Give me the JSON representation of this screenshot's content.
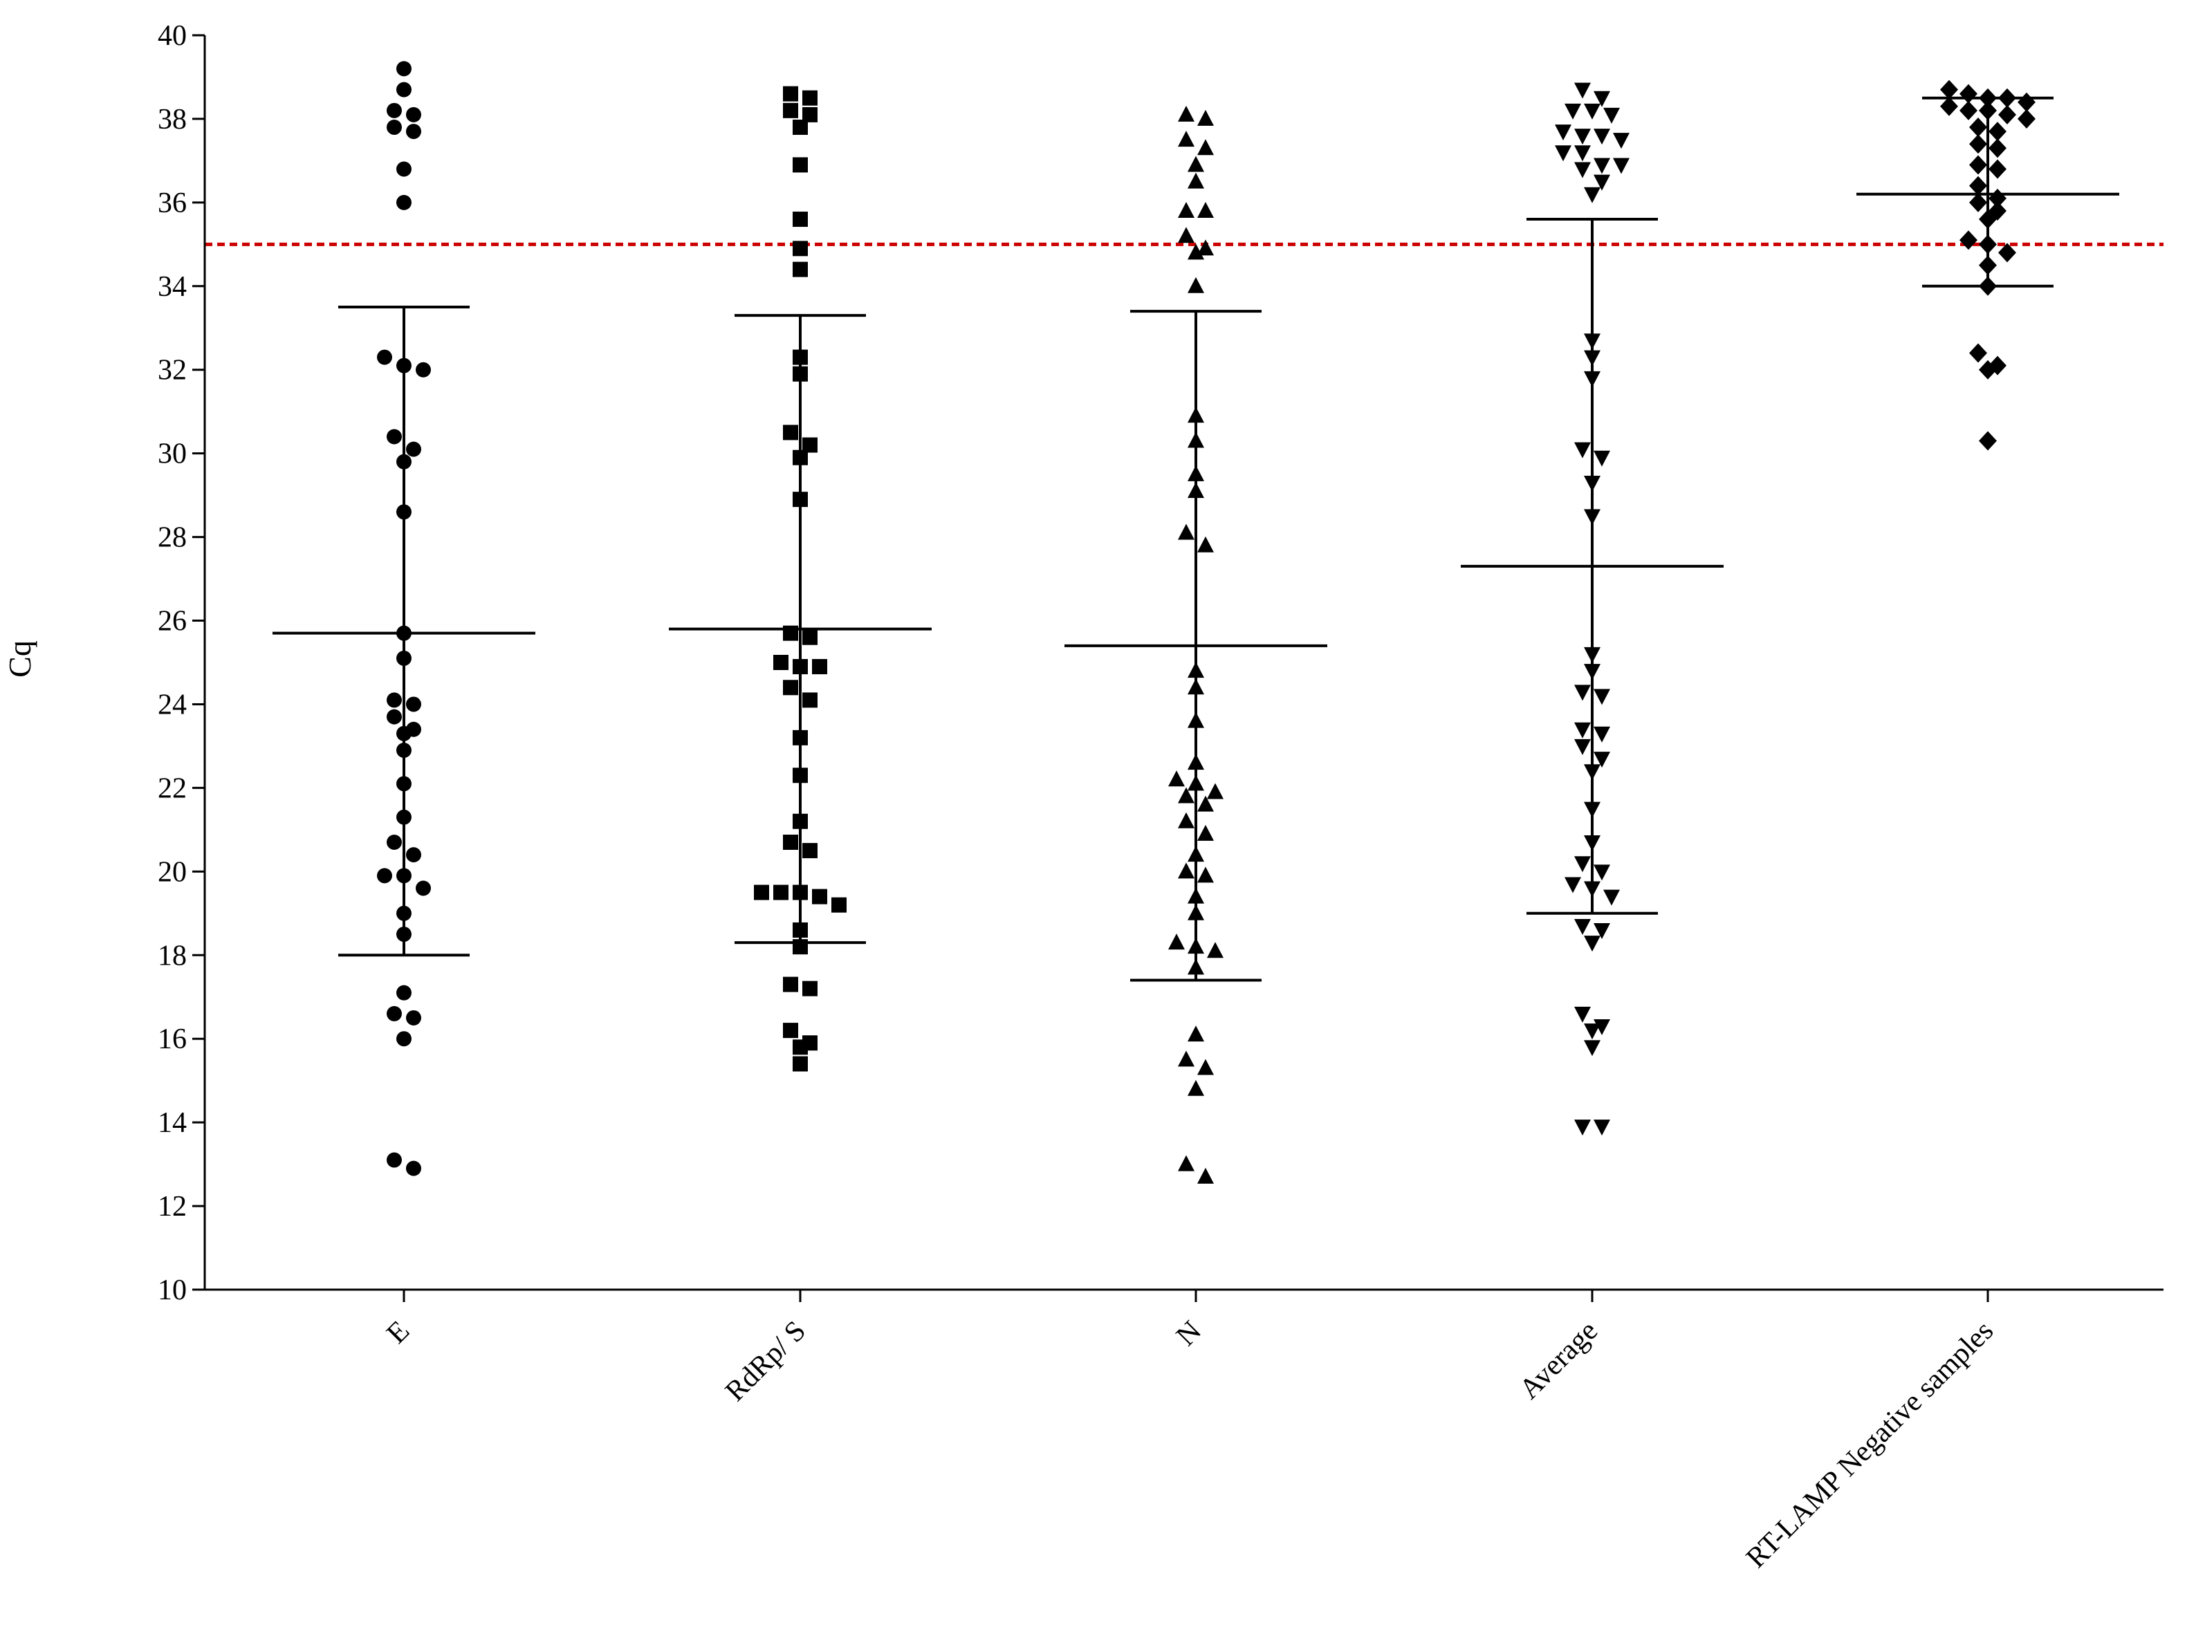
{
  "chart_data": {
    "type": "scatter",
    "title": "",
    "xlabel": "",
    "ylabel": "Cq",
    "ylim": [
      10,
      40
    ],
    "yticks": [
      10,
      12,
      14,
      16,
      18,
      20,
      22,
      24,
      26,
      28,
      30,
      32,
      34,
      36,
      38,
      40
    ],
    "categories": [
      "E",
      "RdRp/ S",
      "N",
      "Average",
      "RT-LAMP Negative samples"
    ],
    "grid": false,
    "legend": "none",
    "colors": {
      "points": "#000000",
      "threshold": "#cc0000"
    },
    "threshold": 35,
    "series": [
      {
        "marker": "circle",
        "mean": 25.7,
        "sd_upper": 33.5,
        "sd_lower": 18.0,
        "values": [
          39.2,
          38.7,
          38.2,
          38.1,
          37.8,
          37.7,
          36.8,
          36.0,
          32.3,
          32.1,
          32.0,
          30.4,
          30.1,
          29.8,
          28.6,
          25.7,
          25.1,
          24.1,
          24.0,
          23.7,
          23.4,
          23.3,
          22.9,
          22.1,
          21.3,
          20.7,
          20.4,
          19.9,
          19.9,
          19.6,
          19.0,
          18.5,
          17.1,
          16.6,
          16.5,
          16.0,
          13.1,
          12.9
        ]
      },
      {
        "marker": "square",
        "mean": 25.8,
        "sd_upper": 33.3,
        "sd_lower": 18.3,
        "values": [
          38.6,
          38.5,
          38.2,
          38.1,
          37.8,
          36.9,
          35.6,
          34.9,
          34.4,
          32.3,
          31.9,
          30.5,
          30.2,
          29.9,
          28.9,
          25.7,
          25.6,
          25.0,
          24.9,
          24.9,
          24.4,
          24.1,
          23.2,
          22.3,
          21.2,
          20.7,
          20.5,
          19.5,
          19.5,
          19.4,
          19.5,
          19.2,
          18.6,
          18.2,
          17.3,
          17.2,
          16.2,
          15.9,
          15.8,
          15.4
        ]
      },
      {
        "marker": "triangle-up",
        "mean": 25.4,
        "sd_upper": 33.4,
        "sd_lower": 17.4,
        "values": [
          38.1,
          38.0,
          37.5,
          37.3,
          36.9,
          36.5,
          35.8,
          35.8,
          35.2,
          34.9,
          34.8,
          34.0,
          30.9,
          30.3,
          29.5,
          29.1,
          28.1,
          27.8,
          24.8,
          24.4,
          23.6,
          22.6,
          22.2,
          22.1,
          21.9,
          21.8,
          21.6,
          21.2,
          20.9,
          20.4,
          20.0,
          19.9,
          19.4,
          19.0,
          18.3,
          18.2,
          18.1,
          17.7,
          16.1,
          15.5,
          15.3,
          14.8,
          13.0,
          12.7
        ]
      },
      {
        "marker": "triangle-down",
        "mean": 27.3,
        "sd_upper": 35.6,
        "sd_lower": 19.0,
        "values": [
          38.7,
          38.5,
          38.2,
          38.2,
          38.1,
          37.7,
          37.6,
          37.6,
          37.5,
          37.2,
          37.2,
          36.9,
          36.9,
          36.8,
          36.5,
          36.2,
          32.7,
          32.3,
          31.8,
          30.1,
          29.9,
          29.3,
          28.5,
          25.2,
          24.8,
          24.3,
          24.2,
          23.4,
          23.3,
          23.0,
          22.7,
          22.4,
          21.5,
          20.7,
          20.2,
          20.0,
          19.7,
          19.6,
          19.4,
          18.7,
          18.6,
          18.3,
          16.6,
          16.3,
          16.2,
          15.8,
          13.9,
          13.9
        ]
      },
      {
        "marker": "diamond",
        "mean": 36.2,
        "sd_upper": 38.5,
        "sd_lower": 34.0,
        "values": [
          38.7,
          38.6,
          38.5,
          38.5,
          38.4,
          38.3,
          38.2,
          38.2,
          38.1,
          38.0,
          37.8,
          37.7,
          37.4,
          37.3,
          36.9,
          36.8,
          36.4,
          36.1,
          36.0,
          35.8,
          35.6,
          35.1,
          35.0,
          34.8,
          34.5,
          34.0,
          32.4,
          32.1,
          32.0,
          30.3
        ]
      }
    ]
  }
}
